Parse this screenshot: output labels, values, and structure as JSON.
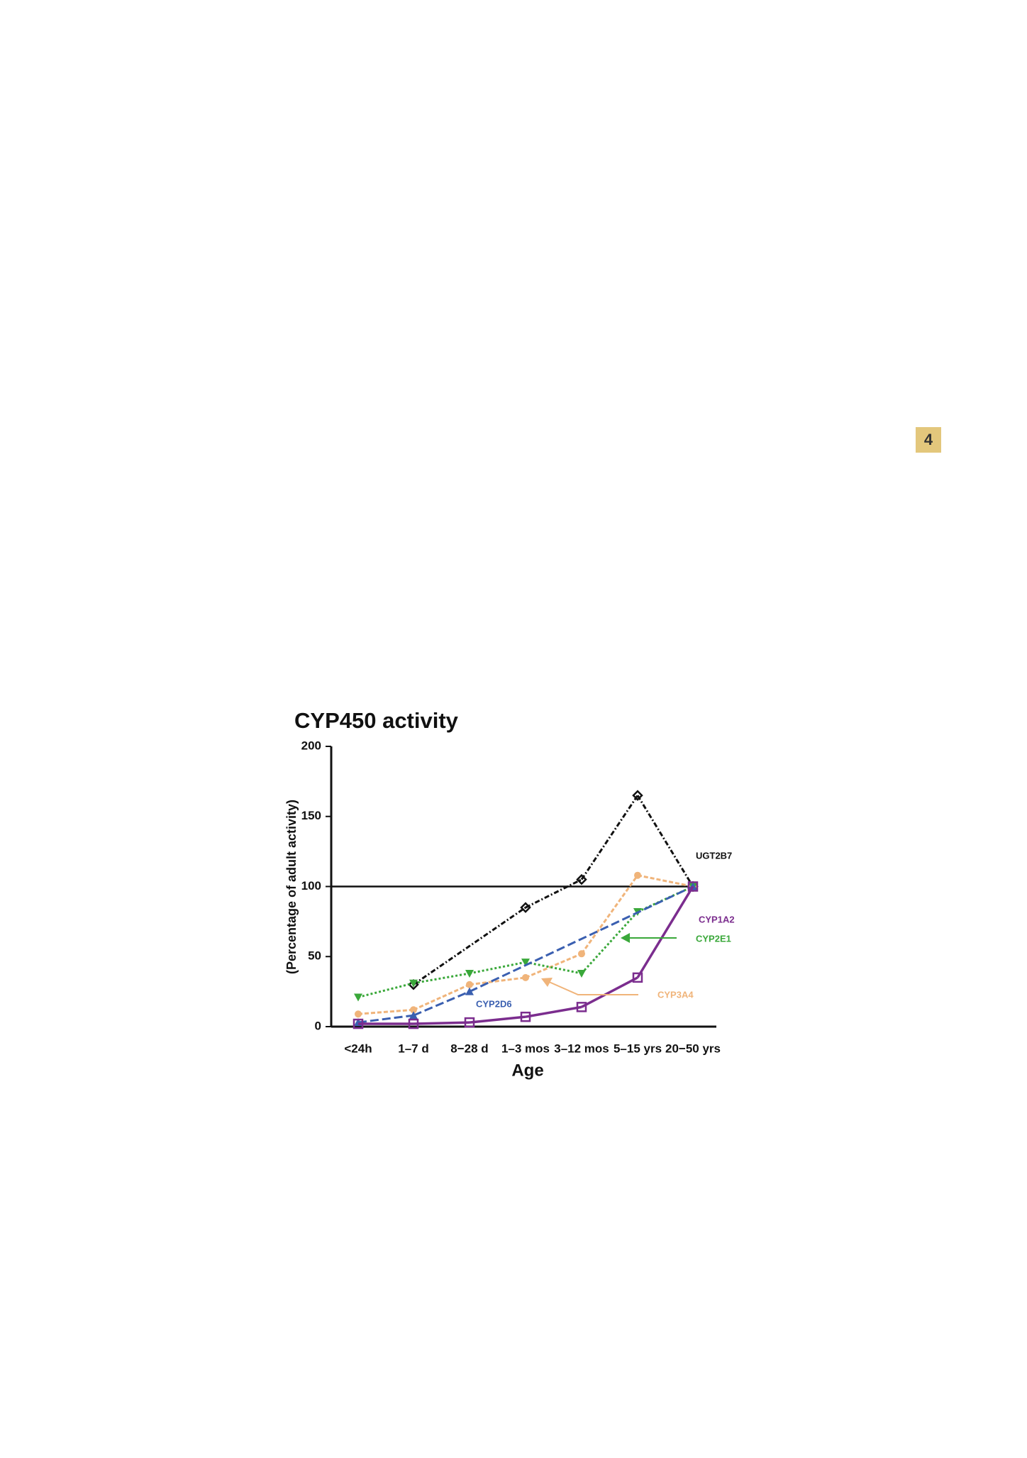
{
  "page_number": "4",
  "chart_data": {
    "type": "line",
    "title": "CYP450 activity",
    "x_label": "Age",
    "y_label": "(Percentage of adult activity)",
    "categories": [
      "<24h",
      "1–7 d",
      "8−28 d",
      "1–3 mos",
      "3–12 mos",
      "5–15 yrs",
      "20−50 yrs"
    ],
    "ylim": [
      0,
      200
    ],
    "yticks": [
      0,
      50,
      100,
      150,
      200
    ],
    "reference_line": 100,
    "span_gaps": true,
    "series": [
      {
        "name": "UGT2B7",
        "color": "#111111",
        "dash": "7 3 2 3",
        "marker": "diamond",
        "values": [
          null,
          30,
          null,
          85,
          105,
          165,
          100
        ]
      },
      {
        "name": "CYP3A4",
        "color": "#f0b47a",
        "dash": "6 3",
        "marker": "circle",
        "values": [
          9,
          12,
          30,
          35,
          52,
          108,
          100
        ]
      },
      {
        "name": "CYP2E1",
        "color": "#3aa83a",
        "dash": "3 3",
        "marker": "triangle-down",
        "values": [
          21,
          31,
          38,
          46,
          38,
          82,
          100
        ]
      },
      {
        "name": "CYP2D6",
        "color": "#3a5fb0",
        "dash": "12 5",
        "marker": "triangle-up",
        "values": [
          3,
          8,
          25,
          null,
          null,
          null,
          100
        ]
      },
      {
        "name": "CYP1A2",
        "color": "#7b2d8e",
        "dash": "",
        "marker": "square-open",
        "values": [
          2,
          2,
          3,
          7,
          14,
          35,
          100
        ]
      }
    ]
  }
}
